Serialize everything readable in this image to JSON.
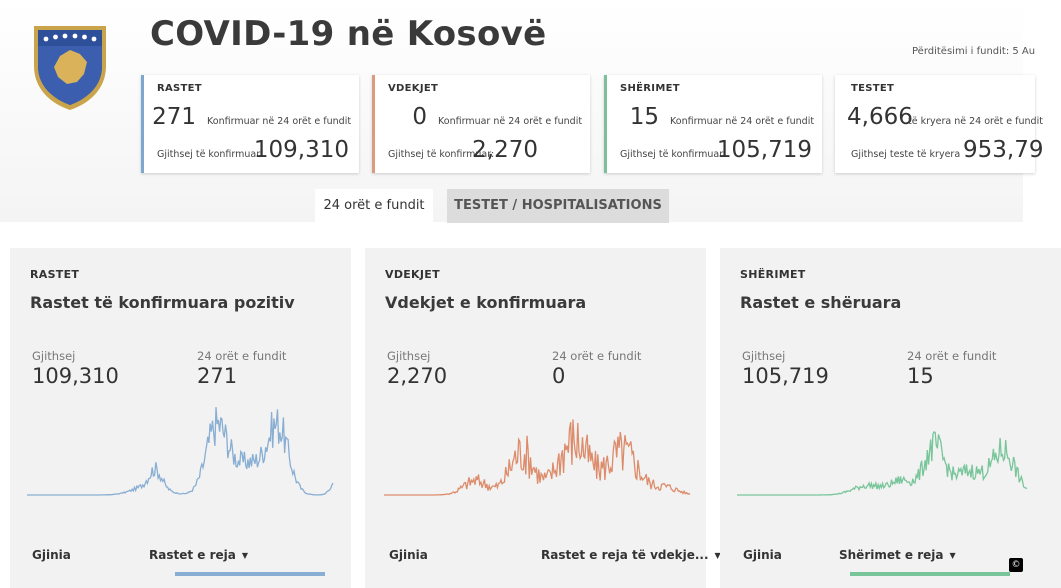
{
  "header": {
    "title": "COVID-19 në Kosovë",
    "updated": "Përditësimi i fundit: 5 Au"
  },
  "stats": [
    {
      "label": "RASTET",
      "value": "271",
      "desc": "Konfirmuar në 24 orët e fundit",
      "total_label": "Gjithsej të konfirmuar:",
      "total": "109,310",
      "color": "#7fa6cc"
    },
    {
      "label": "VDEKJET",
      "value": "0",
      "desc": "Konfirmuar në 24 orët e fundit",
      "total_label": "Gjithsej të konfirmuar:",
      "total": "2,270",
      "color": "#dc9a7f"
    },
    {
      "label": "SHËRIMET",
      "value": "15",
      "desc": "Konfirmuar në 24 orët e fundit",
      "total_label": "Gjithsej të konfirmuar:",
      "total": "105,719",
      "color": "#7dbf9c"
    },
    {
      "label": "TESTET",
      "value": "4,666",
      "desc": "të kryera në 24 orët e fundit",
      "total_label": "Gjithsej teste të kryera",
      "total": "953,79",
      "color": "#ffffff"
    }
  ],
  "tabs": [
    {
      "label": "24 orët e fundit"
    },
    {
      "label": "TESTET / HOSPITALISATIONS"
    }
  ],
  "panels": [
    {
      "label": "RASTET",
      "title": "Rastet të konfirmuara pozitiv",
      "total_label": "Gjithsej",
      "total": "109,310",
      "day_label": "24 orët e fundit",
      "day": "271",
      "foot_left": "Gjinia",
      "foot_right": "Rastet e reja",
      "color": "#88aed3"
    },
    {
      "label": "VDEKJET",
      "title": "Vdekjet e konfirmuara",
      "total_label": "Gjithsej",
      "total": "2,270",
      "day_label": "24 orët e fundit",
      "day": "0",
      "foot_left": "Gjinia",
      "foot_right": "Rastet e reja të vdekje...",
      "color": "#dd8c6b"
    },
    {
      "label": "SHËRIMET",
      "title": "Rastet e shëruara",
      "total_label": "Gjithsej",
      "total": "105,719",
      "day_label": "24 orët e fundit",
      "day": "15",
      "foot_left": "Gjinia",
      "foot_right": "Shërimet e reja",
      "color": "#78c59a"
    }
  ],
  "icons": {
    "emblem": "kosovo-emblem-icon",
    "caret": "caret-down-icon"
  },
  "copyright": "©"
}
